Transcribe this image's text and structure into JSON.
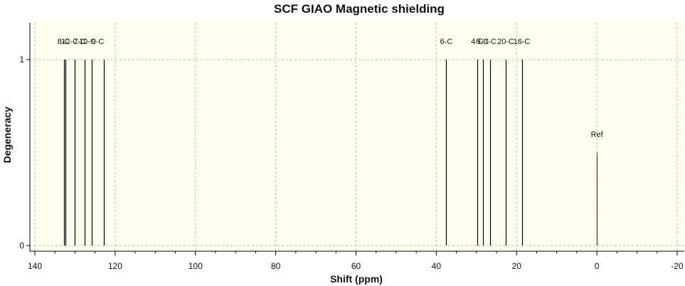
{
  "chart_data": {
    "type": "spectrum",
    "title": "SCF GIAO Magnetic shielding",
    "xlabel": "Shift (ppm)",
    "ylabel": "Degeneracy",
    "xlim": [
      140,
      -20
    ],
    "ylim": [
      0,
      1.24
    ],
    "x_reversed": true,
    "x_ticks": [
      140,
      120,
      100,
      80,
      60,
      40,
      20,
      0,
      -20
    ],
    "x_tick_labels": [
      "140",
      "120",
      "100",
      "80",
      "60",
      "40",
      "20",
      "0",
      "-20"
    ],
    "y_ticks": [
      0,
      1
    ],
    "y_tick_labels": [
      "0",
      "1"
    ],
    "grid": true,
    "plot_background": "#fffff0",
    "peaks": [
      {
        "x": 132.8,
        "y": 1,
        "color": "#000000"
      },
      {
        "x": 132.3,
        "y": 1,
        "color": "#000000"
      },
      {
        "x": 130.0,
        "y": 1,
        "color": "#000000"
      },
      {
        "x": 127.6,
        "y": 1,
        "color": "#000000"
      },
      {
        "x": 125.8,
        "y": 1,
        "color": "#000000"
      },
      {
        "x": 122.8,
        "y": 1,
        "color": "#000000"
      },
      {
        "x": 37.5,
        "y": 1,
        "color": "#000000"
      },
      {
        "x": 29.8,
        "y": 1,
        "color": "#000000"
      },
      {
        "x": 28.3,
        "y": 1,
        "color": "#000000"
      },
      {
        "x": 26.6,
        "y": 1,
        "color": "#000000"
      },
      {
        "x": 22.7,
        "y": 1,
        "color": "#000000"
      },
      {
        "x": 18.7,
        "y": 1,
        "color": "#000000"
      },
      {
        "x": 0.0,
        "y": 0.5,
        "color": "#cc0000"
      }
    ],
    "peak_labels": [
      {
        "text": "8-C",
        "x": 132.8,
        "y": 1
      },
      {
        "text": "12-C",
        "x": 131.3,
        "y": 1
      },
      {
        "text": "7-C",
        "x": 128.8,
        "y": 1
      },
      {
        "text": "10-C",
        "x": 126.9,
        "y": 1
      },
      {
        "text": "9-C",
        "x": 124.3,
        "y": 1
      },
      {
        "text": "6-C",
        "x": 37.5,
        "y": 1
      },
      {
        "text": "4-C",
        "x": 29.8,
        "y": 1
      },
      {
        "text": "5-C",
        "x": 28.5,
        "y": 1
      },
      {
        "text": "3-C",
        "x": 26.6,
        "y": 1
      },
      {
        "text": "20-C",
        "x": 22.7,
        "y": 1
      },
      {
        "text": "16-C",
        "x": 18.7,
        "y": 1
      },
      {
        "text": "Ref",
        "x": 0.0,
        "y": 0.5
      }
    ]
  }
}
